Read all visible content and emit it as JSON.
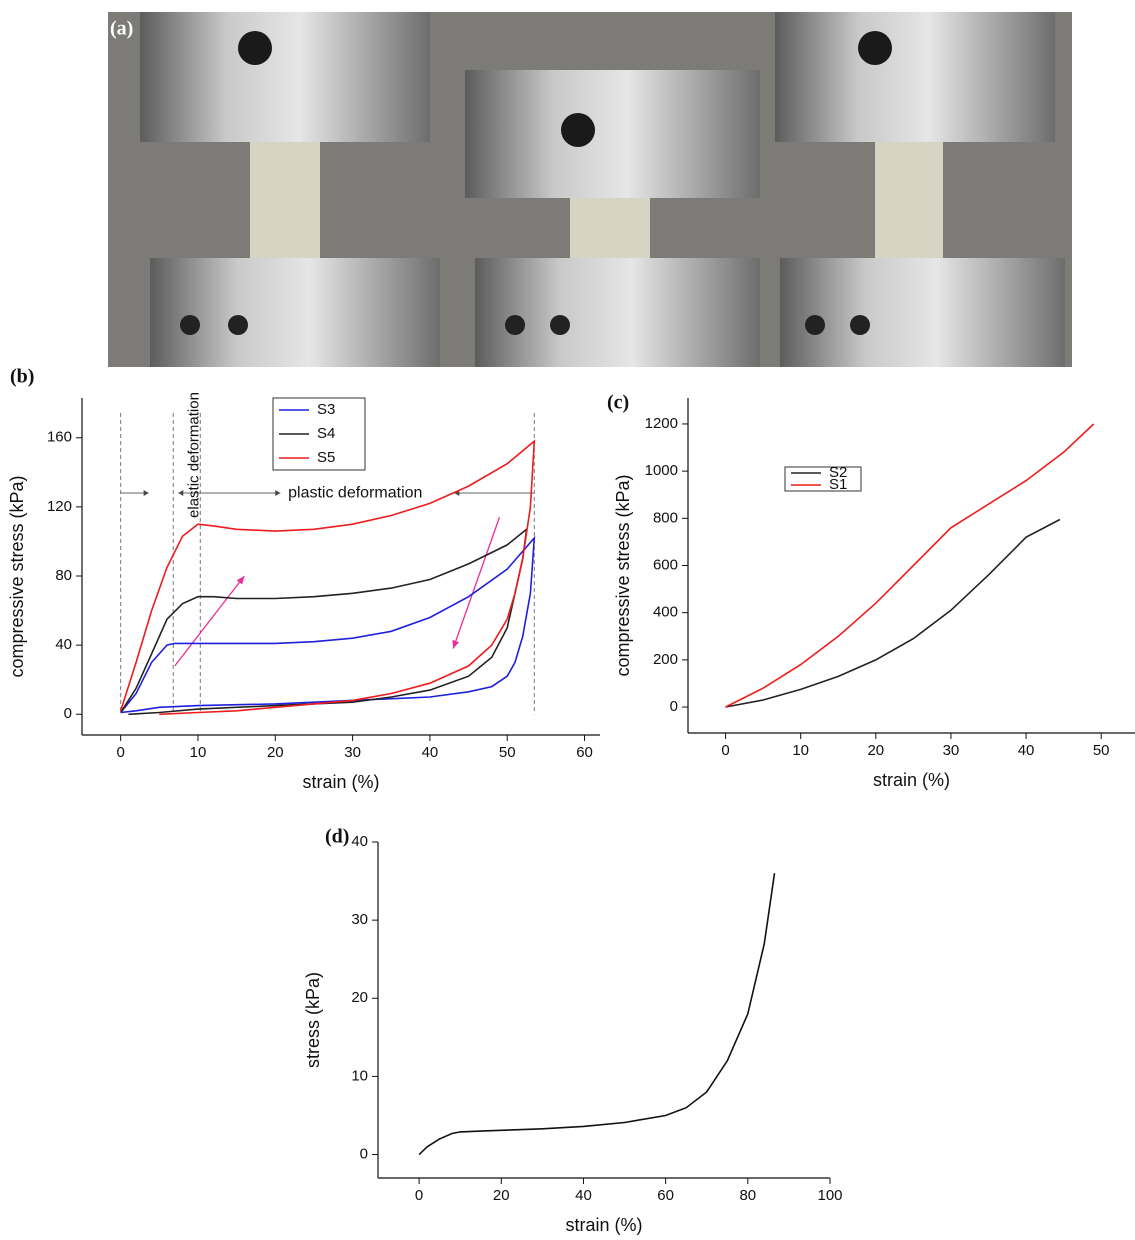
{
  "photo": {
    "label": "(a)"
  },
  "chart_data": [
    {
      "type": "line",
      "panel_label": "(b)",
      "x_label": "strain (%)",
      "y_label": "compressive stress (kPa)",
      "xlim": [
        -5,
        62
      ],
      "ylim": [
        -12,
        183
      ],
      "xticks": [
        0,
        10,
        20,
        30,
        40,
        50,
        60
      ],
      "yticks": [
        0,
        40,
        80,
        120,
        160
      ],
      "annotations": [
        "elastic deformation",
        "plastic deformation"
      ],
      "reference_x": [
        0,
        6.8,
        10.3,
        53.5
      ],
      "series": [
        {
          "name": "S3",
          "color": "#1f1fe0",
          "x": [
            0,
            2,
            4,
            6,
            7,
            10,
            15,
            20,
            25,
            30,
            35,
            40,
            45,
            50,
            53.5,
            53,
            52,
            51,
            50,
            48,
            45,
            40,
            30,
            20,
            10,
            5,
            2,
            0
          ],
          "values": [
            1,
            12,
            30,
            40,
            41,
            41,
            41,
            41,
            42,
            44,
            48,
            56,
            68,
            84,
            102,
            70,
            45,
            30,
            22,
            16,
            13,
            10,
            8,
            6,
            5,
            4,
            2,
            1
          ]
        },
        {
          "name": "S4",
          "color": "#222222",
          "x": [
            0,
            2,
            4,
            6,
            8,
            10,
            12,
            15,
            20,
            25,
            30,
            35,
            40,
            45,
            50,
            52.5,
            52,
            51,
            50,
            48,
            45,
            40,
            35,
            30,
            20,
            15,
            10,
            5,
            1
          ],
          "values": [
            1,
            15,
            35,
            55,
            64,
            68,
            68,
            67,
            67,
            68,
            70,
            73,
            78,
            87,
            98,
            107,
            90,
            70,
            50,
            33,
            22,
            14,
            10,
            7,
            5,
            4,
            3,
            1,
            0
          ]
        },
        {
          "name": "S5",
          "color": "#ee1c1c",
          "x": [
            0,
            2,
            4,
            6,
            8,
            10,
            12,
            15,
            20,
            25,
            30,
            35,
            40,
            45,
            50,
            53.5,
            53,
            52,
            51,
            50,
            48,
            45,
            40,
            35,
            30,
            25,
            20,
            15,
            10,
            5
          ],
          "values": [
            2,
            30,
            60,
            85,
            103,
            110,
            109,
            107,
            106,
            107,
            110,
            115,
            122,
            132,
            145,
            158,
            120,
            90,
            70,
            55,
            40,
            28,
            18,
            12,
            8,
            6,
            4,
            2,
            1,
            0
          ]
        }
      ]
    },
    {
      "type": "line",
      "panel_label": "(c)",
      "x_label": "strain (%)",
      "y_label": "compressive stress (kPa)",
      "xlim": [
        -5,
        54.5
      ],
      "ylim": [
        -110,
        1310
      ],
      "xticks": [
        0,
        10,
        20,
        30,
        40,
        50
      ],
      "yticks": [
        0,
        200,
        400,
        600,
        800,
        1000,
        1200
      ],
      "series": [
        {
          "name": "S2",
          "color": "#222222",
          "x": [
            0,
            5,
            10,
            15,
            20,
            25,
            30,
            35,
            40,
            44.5
          ],
          "values": [
            0,
            30,
            75,
            130,
            200,
            290,
            410,
            560,
            720,
            795
          ]
        },
        {
          "name": "S1",
          "color": "#ee1c1c",
          "x": [
            0,
            5,
            10,
            15,
            20,
            25,
            30,
            35,
            40,
            45,
            49
          ],
          "values": [
            0,
            80,
            180,
            300,
            440,
            600,
            760,
            860,
            960,
            1080,
            1200
          ]
        }
      ]
    },
    {
      "type": "line",
      "panel_label": "(d)",
      "x_label": "strain (%)",
      "y_label": "stress (kPa)",
      "xlim": [
        -10,
        100
      ],
      "ylim": [
        -3,
        40
      ],
      "xticks": [
        0,
        20,
        40,
        60,
        80,
        100
      ],
      "yticks": [
        0,
        10,
        20,
        30,
        40
      ],
      "series": [
        {
          "color": "#111111",
          "x": [
            0,
            2,
            5,
            8,
            10,
            15,
            20,
            30,
            40,
            50,
            60,
            65,
            70,
            75,
            80,
            84,
            86.5
          ],
          "values": [
            0,
            1,
            2,
            2.7,
            2.9,
            3,
            3.1,
            3.3,
            3.6,
            4.1,
            5,
            6,
            8,
            12,
            18,
            27,
            36
          ]
        }
      ]
    }
  ]
}
